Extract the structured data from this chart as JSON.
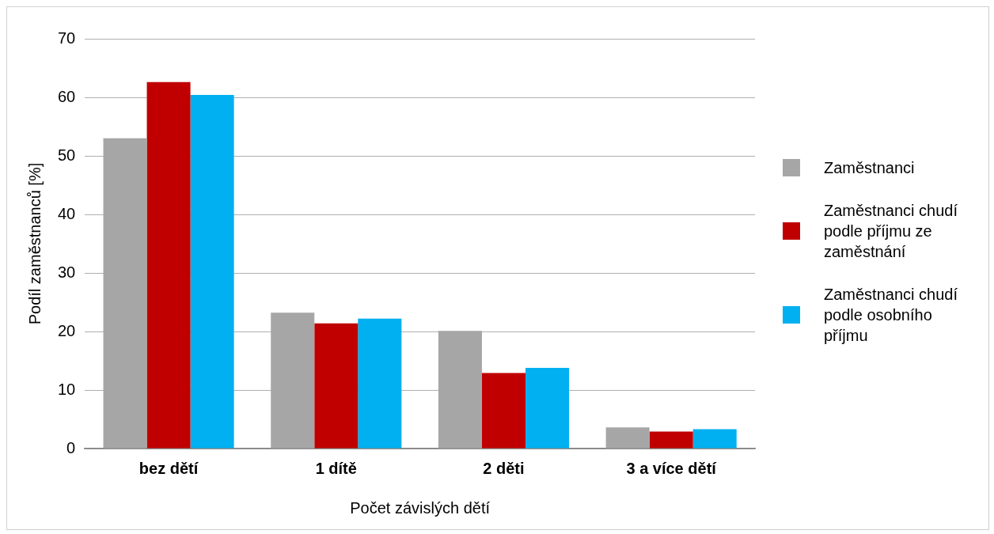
{
  "chart_data": {
    "type": "bar",
    "xlabel": "Počet závislých dětí",
    "ylabel": "Podíl zaměstnanců [%]",
    "categories": [
      "bez dětí",
      "1 dítě",
      "2 děti",
      "3 a více dětí"
    ],
    "series": [
      {
        "name": "Zaměstnanci",
        "color": "#a6a6a6",
        "values": [
          53,
          23.2,
          20.1,
          3.6
        ]
      },
      {
        "name": "Zaměstnanci chudí podle příjmu ze zaměstnání",
        "color": "#c00000",
        "values": [
          62.6,
          21.4,
          12.9,
          2.9
        ]
      },
      {
        "name": "Zaměstnanci chudí podle osobního příjmu",
        "color": "#00b0f0",
        "values": [
          60.4,
          22.2,
          13.8,
          3.3
        ]
      }
    ],
    "ylim": [
      0,
      70
    ],
    "yticks": [
      0,
      10,
      20,
      30,
      40,
      50,
      60,
      70
    ],
    "grid": "y",
    "legend": "right"
  }
}
